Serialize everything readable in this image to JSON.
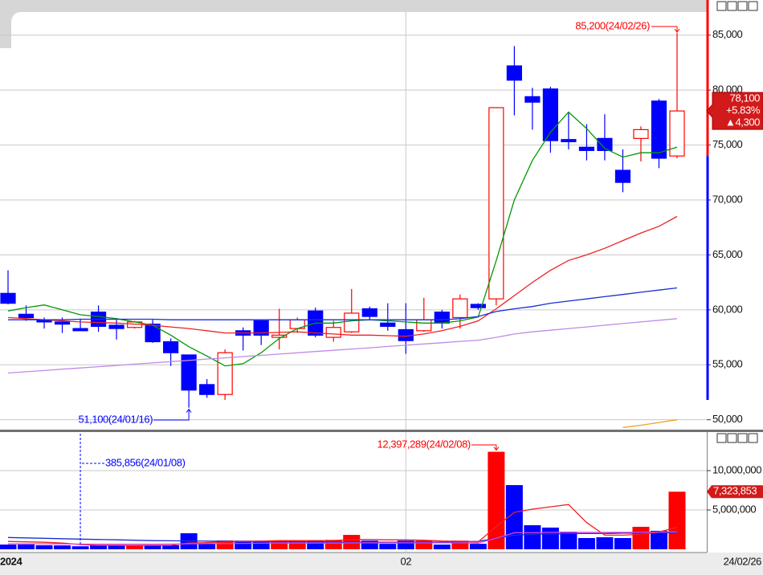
{
  "chart_data": [
    {
      "type": "candlestick",
      "open": [
        61500,
        59600,
        59100,
        58900,
        58300,
        59800,
        58600,
        58400,
        58700,
        57100,
        55900,
        53200,
        52300,
        58100,
        59000,
        57500,
        58300,
        59900,
        57500,
        58000,
        60100,
        58800,
        58200,
        58100,
        59800,
        59300,
        60500,
        61000,
        82200,
        79400,
        80100,
        75500,
        74800,
        75600,
        72700,
        75600,
        79000,
        74000
      ],
      "high": [
        63600,
        60400,
        59300,
        59300,
        59200,
        60400,
        59100,
        59000,
        59100,
        57400,
        55900,
        53700,
        56400,
        58400,
        59100,
        60100,
        59300,
        60200,
        59000,
        61900,
        60300,
        60600,
        60600,
        61100,
        60000,
        61400,
        60600,
        78400,
        84000,
        80200,
        80300,
        78000,
        76900,
        77800,
        74600,
        76700,
        79200,
        85200
      ],
      "low": [
        60500,
        59000,
        58300,
        57900,
        58100,
        58000,
        57300,
        58300,
        57000,
        54900,
        51100,
        52000,
        51800,
        56300,
        56800,
        56400,
        57900,
        57500,
        57100,
        57900,
        59100,
        58100,
        56000,
        58000,
        58300,
        58300,
        60000,
        60400,
        77700,
        76400,
        74300,
        74600,
        73600,
        73600,
        70700,
        73500,
        72900,
        73800
      ],
      "close": [
        60600,
        59300,
        58900,
        58700,
        58100,
        58500,
        58300,
        58900,
        57100,
        56100,
        52700,
        52300,
        56100,
        57700,
        57700,
        57700,
        59100,
        57700,
        58400,
        59700,
        59400,
        58500,
        57200,
        59100,
        58800,
        61000,
        60200,
        78400,
        80900,
        78900,
        75400,
        75300,
        74500,
        74500,
        71600,
        76400,
        73800,
        78100
      ],
      "up_color": "#ff0000",
      "down_color": "#0000ff",
      "lines": [
        {
          "color": "#009900",
          "values": [
            59900,
            60200,
            60450,
            60000,
            59550,
            59400,
            59200,
            58900,
            58600,
            57700,
            56650,
            55800,
            54900,
            55100,
            56100,
            57400,
            58300,
            58800,
            58800,
            59000,
            59100,
            59000,
            58900,
            58800,
            58800,
            59000,
            59350,
            64500,
            70000,
            73600,
            76150,
            78000,
            76500,
            74700,
            73900,
            74300,
            74300,
            74800
          ]
        },
        {
          "color": "#ee2222",
          "values": [
            59300,
            59200,
            59100,
            59000,
            58900,
            58850,
            58800,
            58700,
            58600,
            58450,
            58300,
            58100,
            57900,
            57900,
            57900,
            57950,
            58000,
            57900,
            57800,
            57700,
            57700,
            57650,
            57600,
            57800,
            58100,
            58500,
            59000,
            60100,
            61300,
            62500,
            63600,
            64500,
            65000,
            65600,
            66300,
            67000,
            67600,
            68500
          ]
        },
        {
          "color": "#1a2fd6",
          "values": [
            59100,
            59100,
            59100,
            59100,
            59150,
            59150,
            59150,
            59150,
            59150,
            59100,
            59100,
            59100,
            59100,
            59100,
            59100,
            59100,
            59100,
            59100,
            59100,
            59100,
            59100,
            59100,
            59100,
            59100,
            59100,
            59200,
            59400,
            59850,
            60100,
            60300,
            60600,
            60800,
            61000,
            61200,
            61400,
            61600,
            61800,
            62000
          ]
        },
        {
          "color": "#c08be8",
          "values": [
            54250,
            54370,
            54480,
            54600,
            54710,
            54830,
            54940,
            55060,
            55170,
            55290,
            55400,
            55520,
            55630,
            55750,
            55860,
            55980,
            56090,
            56210,
            56320,
            56440,
            56550,
            56670,
            56780,
            56900,
            57010,
            57130,
            57240,
            57500,
            57800,
            58000,
            58150,
            58300,
            58450,
            58600,
            58750,
            58900,
            59050,
            59200
          ]
        },
        {
          "color": "#f0a020",
          "values": [
            null,
            null,
            null,
            null,
            null,
            null,
            null,
            null,
            null,
            null,
            null,
            null,
            null,
            null,
            null,
            null,
            null,
            null,
            null,
            null,
            null,
            null,
            null,
            null,
            null,
            null,
            null,
            null,
            null,
            null,
            null,
            null,
            null,
            null,
            49300,
            49500,
            49750,
            50000
          ]
        }
      ],
      "ylim": [
        49100,
        87100
      ],
      "yticks": [
        {
          "value": 85000,
          "label": "85,000"
        },
        {
          "value": 80000,
          "label": "80,000"
        },
        {
          "value": 75000,
          "label": "75,000"
        },
        {
          "value": 70000,
          "label": "70,000"
        },
        {
          "value": 65000,
          "label": "65,000"
        },
        {
          "value": 60000,
          "label": "60,000"
        },
        {
          "value": 55000,
          "label": "55,000"
        },
        {
          "value": 50000,
          "label": "50,000"
        }
      ],
      "grid": true,
      "high_annotation": "85,200(24/02/26)",
      "low_annotation": "51,100(24/01/16)",
      "last_price": {
        "close": "78,100",
        "change_rate": "+5.83%",
        "change": "▲4,300"
      }
    },
    {
      "type": "bar",
      "categories": [
        "2024",
        null,
        null,
        null,
        null,
        null,
        null,
        null,
        null,
        null,
        null,
        null,
        null,
        null,
        null,
        null,
        null,
        null,
        null,
        null,
        null,
        null,
        "02",
        null,
        null,
        null,
        null,
        null,
        null,
        null,
        null,
        null,
        null,
        null,
        null,
        null,
        null,
        "24/02/26"
      ],
      "values": [
        600000,
        620000,
        520000,
        500000,
        385856,
        500000,
        520000,
        500000,
        520000,
        510000,
        2040000,
        700000,
        1120000,
        1100000,
        1100000,
        1100000,
        1100000,
        1100000,
        1200000,
        1830000,
        1100000,
        700000,
        1100000,
        1100000,
        600000,
        1100000,
        700000,
        12397289,
        8160000,
        3060000,
        2760000,
        2240000,
        1430000,
        1530000,
        1430000,
        2860000,
        2350000,
        7323853
      ],
      "value_labels": [
        null,
        null,
        null,
        null,
        null,
        null,
        null,
        null,
        null,
        null,
        null,
        null,
        null,
        null,
        null,
        null,
        null,
        null,
        null,
        null,
        null,
        null,
        null,
        null,
        null,
        null,
        null,
        null,
        null,
        null,
        null,
        null,
        null,
        null,
        null,
        null,
        null,
        "7,323,853"
      ],
      "lines": [
        {
          "color": "#1a2fd6",
          "values": [
            1500000,
            1450000,
            1400000,
            1350000,
            1300000,
            1250000,
            1200000,
            1150000,
            1100000,
            1080000,
            1060000,
            1040000,
            1020000,
            1000000,
            980000,
            960000,
            950000,
            940000,
            930000,
            920000,
            910000,
            900000,
            900000,
            900000,
            920000,
            950000,
            1000000,
            1400000,
            1800000,
            1900000,
            1950000,
            2000000,
            2000000,
            2000000,
            2050000,
            2050000,
            2100000,
            2100000
          ]
        },
        {
          "color": "#ee2222",
          "values": [
            1000000,
            950000,
            900000,
            800000,
            600000,
            500000,
            500000,
            480000,
            500000,
            510000,
            800000,
            850000,
            950000,
            1000000,
            1040000,
            1100000,
            1100000,
            1100000,
            1100000,
            1250000,
            1250000,
            1200000,
            1200000,
            1150000,
            1050000,
            1000000,
            950000,
            2900000,
            4700000,
            5100000,
            5400000,
            5700000,
            3400000,
            1800000,
            1800000,
            1900000,
            2200000,
            2800000
          ]
        },
        {
          "color": "#e040e0",
          "values": [
            700000,
            700000,
            700000,
            680000,
            660000,
            650000,
            650000,
            650000,
            650000,
            660000,
            700000,
            720000,
            740000,
            760000,
            780000,
            800000,
            800000,
            800000,
            800000,
            820000,
            820000,
            820000,
            820000,
            820000,
            820000,
            820000,
            800000,
            1400000,
            2100000,
            2100000,
            2150000,
            2150000,
            2150000,
            2150000,
            2150000,
            2150000,
            2200000,
            2200000
          ]
        }
      ],
      "ylim": [
        0,
        14700000
      ],
      "yticks": [
        {
          "value": 10000000,
          "label": "10,000,000"
        },
        {
          "value": 5000000,
          "label": "5,000,000"
        }
      ],
      "grid": true,
      "max_annotation": "12,397,289(24/02/08)",
      "min_annotation": "385,856(24/01/08)"
    }
  ]
}
